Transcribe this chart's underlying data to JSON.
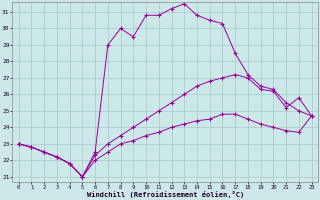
{
  "xlabel": "Windchill (Refroidissement éolien,°C)",
  "background_color": "#cce8e8",
  "grid_color": "#aac8c8",
  "line_color": "#990099",
  "xlim_min": -0.5,
  "xlim_max": 23.5,
  "ylim_min": 20.7,
  "ylim_max": 31.6,
  "yticks": [
    21,
    22,
    23,
    24,
    25,
    26,
    27,
    28,
    29,
    30,
    31
  ],
  "xticks": [
    0,
    1,
    2,
    3,
    4,
    5,
    6,
    7,
    8,
    9,
    10,
    11,
    12,
    13,
    14,
    15,
    16,
    17,
    18,
    19,
    20,
    21,
    22,
    23
  ],
  "hours": [
    0,
    1,
    2,
    3,
    4,
    5,
    6,
    7,
    8,
    9,
    10,
    11,
    12,
    13,
    14,
    15,
    16,
    17,
    18,
    19,
    20,
    21,
    22,
    23
  ],
  "line1": [
    23.0,
    22.8,
    22.5,
    22.2,
    21.8,
    21.0,
    22.5,
    29.0,
    30.0,
    29.5,
    30.8,
    30.8,
    31.2,
    31.5,
    30.8,
    30.5,
    30.3,
    28.5,
    27.2,
    26.5,
    26.3,
    25.5,
    25.0,
    24.7
  ],
  "line2": [
    23.0,
    22.8,
    22.5,
    22.2,
    21.8,
    21.0,
    22.3,
    23.0,
    23.5,
    24.0,
    24.5,
    25.0,
    25.5,
    26.0,
    26.5,
    26.8,
    27.0,
    27.2,
    27.0,
    26.3,
    26.2,
    25.2,
    25.8,
    24.7
  ],
  "line3": [
    23.0,
    22.8,
    22.5,
    22.2,
    21.8,
    21.0,
    22.0,
    22.5,
    23.0,
    23.2,
    23.5,
    23.7,
    24.0,
    24.2,
    24.4,
    24.5,
    24.8,
    24.8,
    24.5,
    24.2,
    24.0,
    23.8,
    23.7,
    24.7
  ]
}
